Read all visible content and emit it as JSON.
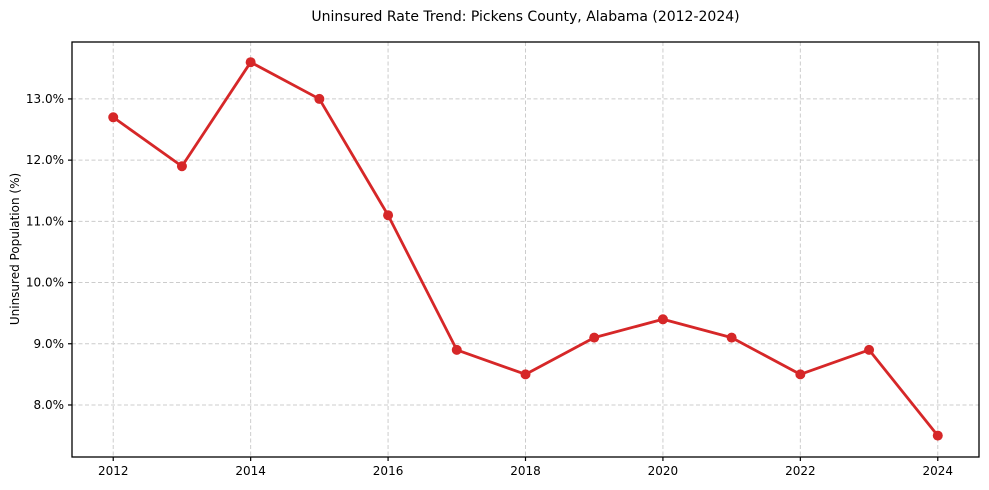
{
  "figure": {
    "background": "#ffffff"
  },
  "chart_data": {
    "type": "line",
    "title": "Uninsured Rate Trend: Pickens County, Alabama (2012-2024)",
    "xlabel": "",
    "ylabel": "Uninsured Population (%)",
    "x": [
      2012,
      2013,
      2014,
      2015,
      2016,
      2017,
      2018,
      2019,
      2020,
      2021,
      2022,
      2023,
      2024
    ],
    "values": [
      12.7,
      11.9,
      13.6,
      13.0,
      11.1,
      8.9,
      8.5,
      9.1,
      9.4,
      9.1,
      8.5,
      8.9,
      7.5
    ],
    "xlim": [
      2011.4,
      2024.6
    ],
    "ylim": [
      7.15,
      13.93
    ],
    "x_ticks": [
      2012,
      2014,
      2016,
      2018,
      2020,
      2022,
      2024
    ],
    "x_tick_labels": [
      "2012",
      "2014",
      "2016",
      "2018",
      "2020",
      "2022",
      "2024"
    ],
    "y_ticks": [
      8,
      9,
      10,
      11,
      12,
      13
    ],
    "y_tick_labels": [
      "8.0%",
      "9.0%",
      "10.0%",
      "11.0%",
      "12.0%",
      "13.0%"
    ],
    "grid": true,
    "grid_style": "dashed",
    "legend": "none",
    "line_color": "#d62728",
    "marker": "circle",
    "marker_color": "#d62728",
    "grid_color": "#cccccc",
    "axis_color": "#000000"
  }
}
